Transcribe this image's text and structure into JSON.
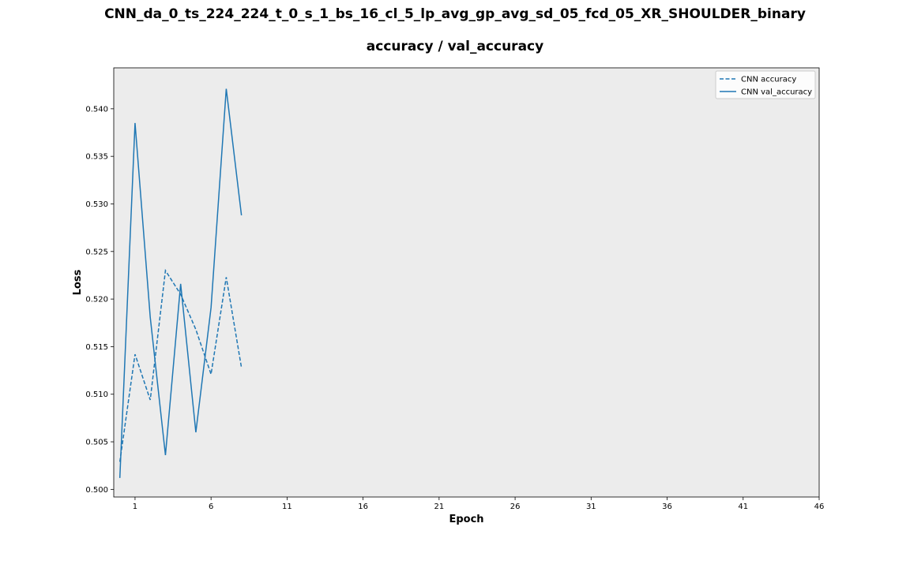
{
  "chart_data": {
    "type": "line",
    "title": "CNN_da_0_ts_224_224_t_0_s_1_bs_16_cl_5_lp_avg_gp_avg_sd_05_fcd_05_XR_SHOULDER_binary",
    "subtitle": "accuracy / val_accuracy",
    "xlabel": "Epoch",
    "ylabel": "Loss",
    "xlim": [
      -0.4,
      46
    ],
    "ylim": [
      0.4992,
      0.5443
    ],
    "x_ticks": [
      1,
      6,
      11,
      16,
      21,
      26,
      31,
      36,
      41,
      46
    ],
    "y_ticks": [
      0.5,
      0.505,
      0.51,
      0.515,
      0.52,
      0.525,
      0.53,
      0.535,
      0.54
    ],
    "y_tick_labels": [
      "0.500",
      "0.505",
      "0.510",
      "0.515",
      "0.520",
      "0.525",
      "0.530",
      "0.535",
      "0.540"
    ],
    "x": [
      0,
      1,
      2,
      3,
      4,
      5,
      6,
      7,
      8
    ],
    "series": [
      {
        "name": "CNN accuracy",
        "style": "dashed",
        "color": "#1f77b4",
        "values": [
          0.5029,
          0.5142,
          0.5094,
          0.523,
          0.5205,
          0.5168,
          0.5121,
          0.5223,
          0.5128
        ]
      },
      {
        "name": "CNN val_accuracy",
        "style": "solid",
        "color": "#1f77b4",
        "values": [
          0.5012,
          0.5385,
          0.5181,
          0.5036,
          0.5216,
          0.506,
          0.5191,
          0.5421,
          0.5288
        ]
      }
    ],
    "grid": false,
    "legend_position": "top-right",
    "plot_background": "#ececec"
  }
}
